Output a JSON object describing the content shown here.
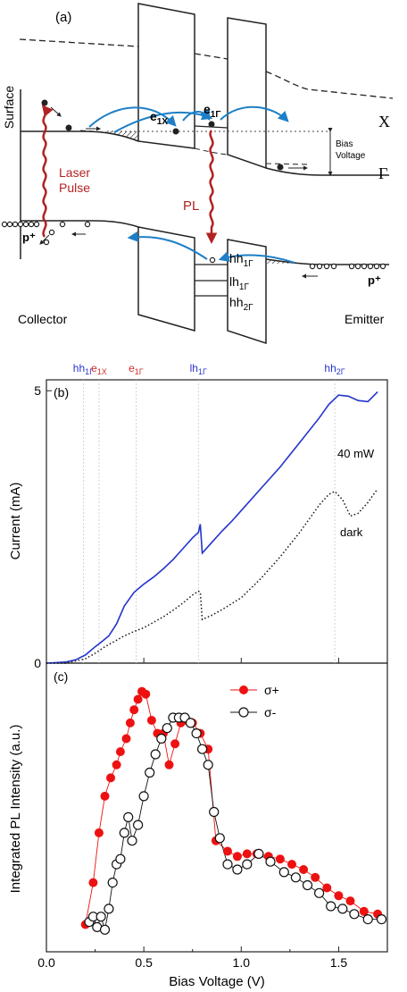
{
  "panel_a": {
    "label": "(a)",
    "surface": "Surface",
    "x_label": "X",
    "gamma_label": "Γ",
    "bias_voltage": [
      "Bias",
      "Voltage"
    ],
    "laser_pulse": [
      "Laser",
      "Pulse"
    ],
    "pl": "PL",
    "e1x": {
      "base": "e",
      "sub": "1X"
    },
    "e1g": {
      "base": "e",
      "sub": "1Γ"
    },
    "hh1g": {
      "base": "hh",
      "sub": "1Γ"
    },
    "lh1g": {
      "base": "lh",
      "sub": "1Γ"
    },
    "hh2g": {
      "base": "hh",
      "sub": "2Γ"
    },
    "p_left": "p⁺",
    "p_right": "p⁺",
    "collector": "Collector",
    "emitter": "Emitter",
    "colors": {
      "arrow_blue": "#1e7fc6",
      "laser_red": "#b22222"
    }
  },
  "panel_b": {
    "label": "(b)"
  },
  "panel_c": {
    "label": "(c)"
  },
  "top_markers": [
    {
      "base": "hh",
      "sub": "1Γ",
      "x": 0.19,
      "color": "#2a35c8"
    },
    {
      "base": "e",
      "sub": "1X",
      "x": 0.27,
      "color": "#d42a2a"
    },
    {
      "base": "e",
      "sub": "1Γ",
      "x": 0.46,
      "color": "#d42a2a"
    },
    {
      "base": "lh",
      "sub": "1Γ",
      "x": 0.78,
      "color": "#2a35c8"
    },
    {
      "base": "hh",
      "sub": "2Γ",
      "x": 1.48,
      "color": "#2a35c8"
    }
  ],
  "chart_data": [
    {
      "type": "line",
      "panel": "(b)",
      "ylabel": "Current (mA)",
      "xlim": [
        0.0,
        1.75
      ],
      "ylim": [
        0,
        5.2
      ],
      "yticks": [
        0,
        5
      ],
      "grid": false,
      "series": [
        {
          "name": "40 mW",
          "color": "#2233cc",
          "style": "solid",
          "x": [
            0.0,
            0.1,
            0.15,
            0.2,
            0.25,
            0.28,
            0.32,
            0.36,
            0.4,
            0.45,
            0.5,
            0.55,
            0.6,
            0.65,
            0.7,
            0.75,
            0.78,
            0.79,
            0.8,
            0.85,
            0.9,
            0.95,
            1.0,
            1.1,
            1.2,
            1.3,
            1.4,
            1.45,
            1.5,
            1.55,
            1.6,
            1.65,
            1.7
          ],
          "y": [
            0.0,
            0.02,
            0.06,
            0.15,
            0.3,
            0.38,
            0.5,
            0.72,
            1.05,
            1.3,
            1.45,
            1.58,
            1.73,
            1.9,
            2.1,
            2.3,
            2.4,
            2.55,
            2.02,
            2.22,
            2.42,
            2.6,
            2.8,
            3.2,
            3.6,
            4.05,
            4.5,
            4.75,
            4.92,
            4.9,
            4.82,
            4.8,
            4.98
          ]
        },
        {
          "name": "dark",
          "color": "#111111",
          "style": "dotted",
          "x": [
            0.0,
            0.1,
            0.2,
            0.25,
            0.3,
            0.35,
            0.4,
            0.45,
            0.5,
            0.55,
            0.6,
            0.65,
            0.7,
            0.75,
            0.78,
            0.79,
            0.8,
            0.85,
            0.9,
            1.0,
            1.1,
            1.2,
            1.3,
            1.4,
            1.45,
            1.48,
            1.52,
            1.56,
            1.6,
            1.65,
            1.7
          ],
          "y": [
            0.0,
            0.0,
            0.08,
            0.18,
            0.3,
            0.4,
            0.5,
            0.58,
            0.65,
            0.75,
            0.85,
            0.97,
            1.1,
            1.25,
            1.32,
            1.3,
            0.8,
            0.88,
            0.98,
            1.2,
            1.55,
            1.95,
            2.4,
            2.9,
            3.1,
            3.15,
            3.0,
            2.7,
            2.75,
            2.95,
            3.2
          ]
        }
      ],
      "annotations": [
        "40 mW",
        "dark"
      ]
    },
    {
      "type": "scatter",
      "panel": "(c)",
      "xlabel": "Bias Voltage (V)",
      "ylabel": "Integrated PL Intensity (a.u.)",
      "xlim": [
        0.0,
        1.75
      ],
      "ylim": [
        0,
        1.0
      ],
      "xticks": [
        0.0,
        0.5,
        1.0,
        1.5
      ],
      "xtick_labels": [
        "0.0",
        "0.5",
        "1.0",
        "1.5"
      ],
      "legend_position": "top-right",
      "grid": false,
      "series": [
        {
          "name": "σ+",
          "color": "#ee1111",
          "marker": "filled-circle",
          "x": [
            0.2,
            0.24,
            0.27,
            0.3,
            0.33,
            0.36,
            0.38,
            0.41,
            0.43,
            0.45,
            0.47,
            0.49,
            0.51,
            0.54,
            0.57,
            0.6,
            0.63,
            0.66,
            0.69,
            0.72,
            0.75,
            0.79,
            0.83,
            0.87,
            0.93,
            0.98,
            1.03,
            1.08,
            1.14,
            1.2,
            1.26,
            1.32,
            1.38,
            1.44,
            1.5,
            1.56,
            1.63,
            1.7
          ],
          "y": [
            0.07,
            0.23,
            0.42,
            0.56,
            0.63,
            0.68,
            0.73,
            0.78,
            0.84,
            0.89,
            0.93,
            0.96,
            0.95,
            0.85,
            0.8,
            0.8,
            0.68,
            0.76,
            0.84,
            0.85,
            0.84,
            0.8,
            0.74,
            0.39,
            0.35,
            0.33,
            0.34,
            0.34,
            0.33,
            0.32,
            0.3,
            0.28,
            0.25,
            0.21,
            0.18,
            0.16,
            0.12,
            0.11
          ]
        },
        {
          "name": "σ-",
          "color": "#111111",
          "marker": "open-circle",
          "x": [
            0.22,
            0.24,
            0.26,
            0.28,
            0.3,
            0.32,
            0.34,
            0.36,
            0.38,
            0.4,
            0.42,
            0.44,
            0.47,
            0.5,
            0.53,
            0.56,
            0.59,
            0.62,
            0.65,
            0.68,
            0.71,
            0.74,
            0.77,
            0.8,
            0.83,
            0.86,
            0.89,
            0.93,
            0.98,
            1.03,
            1.09,
            1.15,
            1.22,
            1.28,
            1.34,
            1.4,
            1.46,
            1.52,
            1.58,
            1.65,
            1.72
          ],
          "y": [
            0.08,
            0.1,
            0.06,
            0.1,
            0.05,
            0.13,
            0.23,
            0.3,
            0.32,
            0.42,
            0.48,
            0.39,
            0.45,
            0.56,
            0.65,
            0.72,
            0.78,
            0.82,
            0.86,
            0.86,
            0.86,
            0.84,
            0.8,
            0.74,
            0.68,
            0.5,
            0.4,
            0.3,
            0.28,
            0.3,
            0.34,
            0.31,
            0.27,
            0.25,
            0.22,
            0.19,
            0.14,
            0.13,
            0.11,
            0.09,
            0.09
          ]
        }
      ],
      "annotations": [
        "σ+",
        "σ-"
      ]
    }
  ]
}
